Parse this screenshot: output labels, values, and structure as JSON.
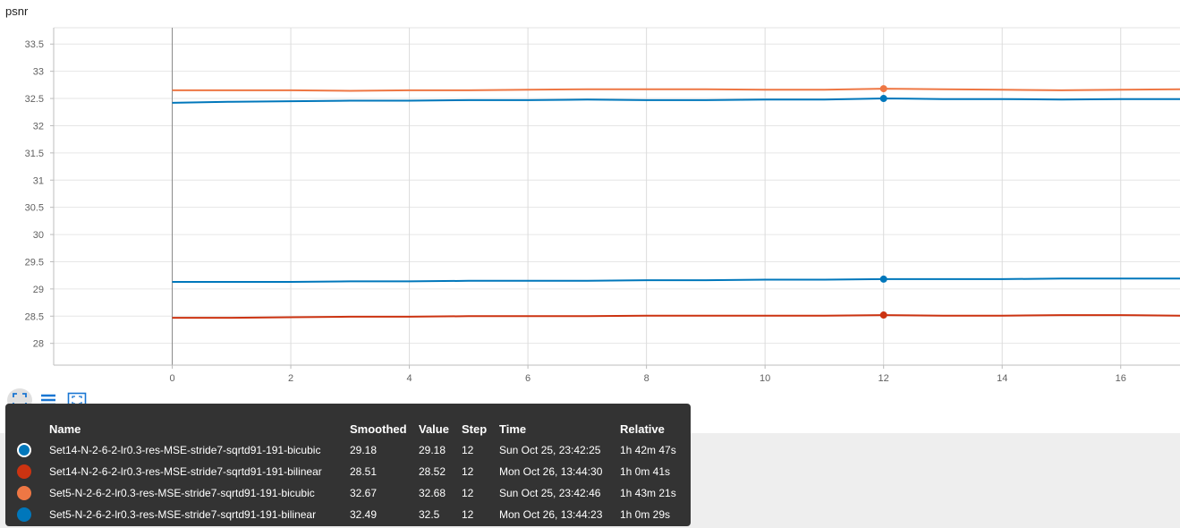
{
  "chart_data": {
    "type": "line",
    "title": "psnr",
    "xlim": [
      -2,
      17
    ],
    "ylim": [
      27.6,
      33.8
    ],
    "xticks": [
      0,
      2,
      4,
      6,
      8,
      10,
      12,
      14,
      16
    ],
    "xtick_labels": [
      "0",
      "2",
      "4",
      "6",
      "8",
      "10",
      "12",
      "14",
      "16"
    ],
    "yticks": [
      28,
      28.5,
      29,
      29.5,
      30,
      30.5,
      31,
      31.5,
      32,
      32.5,
      33,
      33.5
    ],
    "ytick_labels": [
      "28",
      "28.5",
      "29",
      "29.5",
      "30",
      "30.5",
      "31",
      "31.5",
      "32",
      "32.5",
      "33",
      "33.5"
    ],
    "hover_step": 12,
    "series": [
      {
        "name": "Set14-N-2-6-2-lr0.3-res-MSE-stride7-sqrtd91-191-bicubic",
        "color": "#0077bb",
        "x": [
          0,
          1,
          2,
          3,
          4,
          5,
          6,
          7,
          8,
          9,
          10,
          11,
          12,
          13,
          14,
          15,
          16,
          17
        ],
        "values": [
          29.13,
          29.13,
          29.13,
          29.14,
          29.14,
          29.15,
          29.15,
          29.15,
          29.16,
          29.16,
          29.17,
          29.17,
          29.18,
          29.18,
          29.18,
          29.19,
          29.19,
          29.19
        ]
      },
      {
        "name": "Set14-N-2-6-2-lr0.3-res-MSE-stride7-sqrtd91-191-bilinear",
        "color": "#cc3311",
        "x": [
          0,
          1,
          2,
          3,
          4,
          5,
          6,
          7,
          8,
          9,
          10,
          11,
          12,
          13,
          14,
          15,
          16,
          17
        ],
        "values": [
          28.47,
          28.47,
          28.48,
          28.49,
          28.49,
          28.5,
          28.5,
          28.5,
          28.51,
          28.51,
          28.51,
          28.51,
          28.52,
          28.51,
          28.51,
          28.52,
          28.52,
          28.51
        ]
      },
      {
        "name": "Set5-N-2-6-2-lr0.3-res-MSE-stride7-sqrtd91-191-bicubic",
        "color": "#ee7744",
        "x": [
          0,
          1,
          2,
          3,
          4,
          5,
          6,
          7,
          8,
          9,
          10,
          11,
          12,
          13,
          14,
          15,
          16,
          17
        ],
        "values": [
          32.65,
          32.65,
          32.65,
          32.64,
          32.65,
          32.65,
          32.66,
          32.67,
          32.67,
          32.67,
          32.66,
          32.66,
          32.68,
          32.67,
          32.66,
          32.65,
          32.66,
          32.67
        ]
      },
      {
        "name": "Set5-N-2-6-2-lr0.3-res-MSE-stride7-sqrtd91-191-bilinear",
        "color": "#0077bb",
        "x": [
          0,
          1,
          2,
          3,
          4,
          5,
          6,
          7,
          8,
          9,
          10,
          11,
          12,
          13,
          14,
          15,
          16,
          17
        ],
        "values": [
          32.42,
          32.44,
          32.45,
          32.46,
          32.46,
          32.47,
          32.47,
          32.48,
          32.47,
          32.47,
          32.48,
          32.48,
          32.5,
          32.49,
          32.49,
          32.48,
          32.49,
          32.49
        ]
      }
    ]
  },
  "tooltip": {
    "headers": {
      "name": "Name",
      "smoothed": "Smoothed",
      "value": "Value",
      "step": "Step",
      "time": "Time",
      "relative": "Relative"
    },
    "rows": [
      {
        "name": "Set14-N-2-6-2-lr0.3-res-MSE-stride7-sqrtd91-191-bicubic",
        "smoothed": "29.18",
        "value": "29.18",
        "step": "12",
        "time": "Sun Oct 25, 23:42:25",
        "relative": "1h 42m 47s",
        "color": "#0077bb",
        "ring": true
      },
      {
        "name": "Set14-N-2-6-2-lr0.3-res-MSE-stride7-sqrtd91-191-bilinear",
        "smoothed": "28.51",
        "value": "28.52",
        "step": "12",
        "time": "Mon Oct 26, 13:44:30",
        "relative": "1h 0m 41s",
        "color": "#cc3311",
        "ring": false
      },
      {
        "name": "Set5-N-2-6-2-lr0.3-res-MSE-stride7-sqrtd91-191-bicubic",
        "smoothed": "32.67",
        "value": "32.68",
        "step": "12",
        "time": "Sun Oct 25, 23:42:46",
        "relative": "1h 43m 21s",
        "color": "#ee7744",
        "ring": false
      },
      {
        "name": "Set5-N-2-6-2-lr0.3-res-MSE-stride7-sqrtd91-191-bilinear",
        "smoothed": "32.49",
        "value": "32.5",
        "step": "12",
        "time": "Mon Oct 26, 13:44:23",
        "relative": "1h 0m 29s",
        "color": "#0077bb",
        "ring": false
      }
    ]
  },
  "toolbar": {
    "icons": [
      "fit-to-data-icon",
      "toggle-log-scale-icon",
      "expand-chart-icon"
    ]
  }
}
